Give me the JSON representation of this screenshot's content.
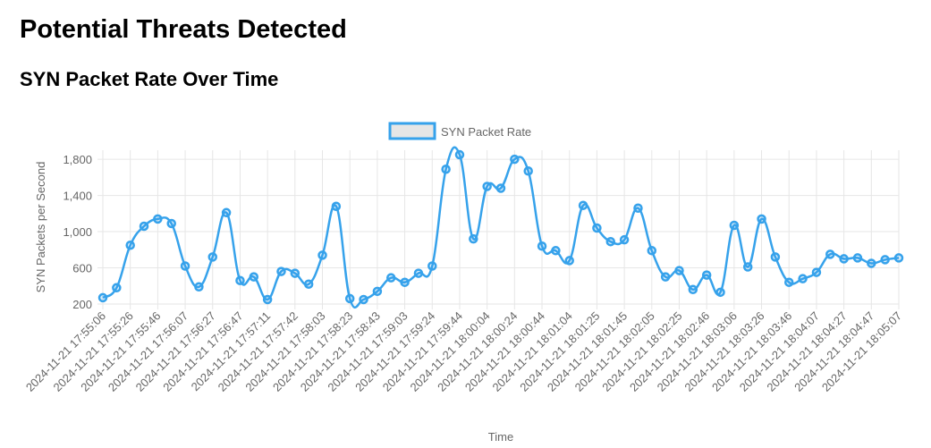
{
  "page": {
    "title": "Potential Threats Detected",
    "section_title": "SYN Packet Rate Over Time"
  },
  "colors": {
    "line": "#36a2eb",
    "legend_fill": "#e6e6e6",
    "grid": "#e6e6e6",
    "text": "#666666"
  },
  "chart_data": {
    "type": "line",
    "title": "",
    "xlabel": "Time",
    "ylabel": "SYN Packets per Second",
    "ylim": [
      200,
      1900
    ],
    "yticks": [
      200,
      600,
      1000,
      1400,
      1800
    ],
    "ytick_labels": [
      "200",
      "600",
      "1,000",
      "1,400",
      "1,800"
    ],
    "grid": true,
    "legend_position": "top",
    "x": [
      "2024-11-21 17:55:06",
      "2024-11-21 17:55:16",
      "2024-11-21 17:55:26",
      "2024-11-21 17:55:36",
      "2024-11-21 17:55:46",
      "2024-11-21 17:55:56",
      "2024-11-21 17:56:07",
      "2024-11-21 17:56:17",
      "2024-11-21 17:56:27",
      "2024-11-21 17:56:37",
      "2024-11-21 17:56:47",
      "2024-11-21 17:56:59",
      "2024-11-21 17:57:11",
      "2024-11-21 17:57:26",
      "2024-11-21 17:57:42",
      "2024-11-21 17:57:53",
      "2024-11-21 17:58:03",
      "2024-11-21 17:58:13",
      "2024-11-21 17:58:23",
      "2024-11-21 17:58:33",
      "2024-11-21 17:58:43",
      "2024-11-21 17:58:53",
      "2024-11-21 17:59:03",
      "2024-11-21 17:59:13",
      "2024-11-21 17:59:24",
      "2024-11-21 17:59:34",
      "2024-11-21 17:59:44",
      "2024-11-21 17:59:54",
      "2024-11-21 18:00:04",
      "2024-11-21 18:00:14",
      "2024-11-21 18:00:24",
      "2024-11-21 18:00:34",
      "2024-11-21 18:00:44",
      "2024-11-21 18:00:54",
      "2024-11-21 18:01:04",
      "2024-11-21 18:01:15",
      "2024-11-21 18:01:25",
      "2024-11-21 18:01:35",
      "2024-11-21 18:01:45",
      "2024-11-21 18:01:55",
      "2024-11-21 18:02:05",
      "2024-11-21 18:02:15",
      "2024-11-21 18:02:25",
      "2024-11-21 18:02:36",
      "2024-11-21 18:02:46",
      "2024-11-21 18:02:56",
      "2024-11-21 18:03:06",
      "2024-11-21 18:03:16",
      "2024-11-21 18:03:26",
      "2024-11-21 18:03:36",
      "2024-11-21 18:03:46",
      "2024-11-21 18:03:56",
      "2024-11-21 18:04:07",
      "2024-11-21 18:04:17",
      "2024-11-21 18:04:27",
      "2024-11-21 18:04:37",
      "2024-11-21 18:04:47",
      "2024-11-21 18:04:57",
      "2024-11-21 18:05:07"
    ],
    "xtick_labels": [
      "2024-11-21 17:55:06",
      "2024-11-21 17:55:26",
      "2024-11-21 17:55:46",
      "2024-11-21 17:56:07",
      "2024-11-21 17:56:27",
      "2024-11-21 17:56:47",
      "2024-11-21 17:57:11",
      "2024-11-21 17:57:42",
      "2024-11-21 17:58:03",
      "2024-11-21 17:58:23",
      "2024-11-21 17:58:43",
      "2024-11-21 17:59:03",
      "2024-11-21 17:59:24",
      "2024-11-21 17:59:44",
      "2024-11-21 18:00:04",
      "2024-11-21 18:00:24",
      "2024-11-21 18:00:44",
      "2024-11-21 18:01:04",
      "2024-11-21 18:01:25",
      "2024-11-21 18:01:45",
      "2024-11-21 18:02:05",
      "2024-11-21 18:02:25",
      "2024-11-21 18:02:46",
      "2024-11-21 18:03:06",
      "2024-11-21 18:03:26",
      "2024-11-21 18:03:46",
      "2024-11-21 18:04:07",
      "2024-11-21 18:04:27",
      "2024-11-21 18:04:47",
      "2024-11-21 18:05:07"
    ],
    "series": [
      {
        "name": "SYN Packet Rate",
        "values": [
          270,
          380,
          850,
          1060,
          1140,
          1090,
          620,
          390,
          720,
          1210,
          460,
          500,
          250,
          560,
          540,
          420,
          740,
          1280,
          260,
          250,
          340,
          490,
          440,
          540,
          620,
          1690,
          1850,
          920,
          1500,
          1480,
          1800,
          1670,
          840,
          790,
          680,
          1290,
          1040,
          890,
          910,
          1260,
          790,
          500,
          570,
          360,
          520,
          330,
          1070,
          610,
          1140,
          720,
          440,
          480,
          550,
          750,
          700,
          710,
          650,
          690,
          710
        ]
      }
    ]
  }
}
